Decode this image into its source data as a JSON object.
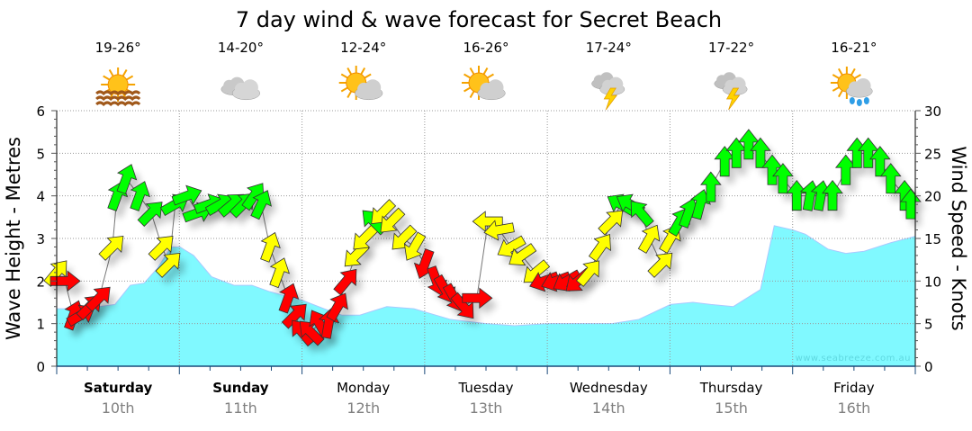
{
  "chart_data": {
    "type": "area",
    "title": "7 day wind & wave forecast for Secret Beach",
    "ylabel_left": "Wave Height - Metres",
    "ylabel_right": "Wind Speed - Knots",
    "ylim_left": [
      0,
      6
    ],
    "ylim_right": [
      0,
      30
    ],
    "xlim_hours": [
      0,
      168
    ],
    "grid": true,
    "left_ticks": [
      "0",
      "1",
      "2",
      "3",
      "4",
      "5",
      "6"
    ],
    "right_ticks": [
      "0",
      "5",
      "10",
      "15",
      "20",
      "25",
      "30"
    ],
    "watermark": "www.seabreeze.com.au",
    "days": [
      {
        "name": "Saturday",
        "date": "10th",
        "bold": true,
        "temp": "19-26°",
        "icon": "sun-haze"
      },
      {
        "name": "Sunday",
        "date": "11th",
        "bold": true,
        "temp": "14-20°",
        "icon": "cloudy"
      },
      {
        "name": "Monday",
        "date": "12th",
        "bold": false,
        "temp": "12-24°",
        "icon": "partly-cloudy"
      },
      {
        "name": "Tuesday",
        "date": "13th",
        "bold": false,
        "temp": "16-26°",
        "icon": "partly-cloudy"
      },
      {
        "name": "Wednesday",
        "date": "14th",
        "bold": false,
        "temp": "17-24°",
        "icon": "thunderstorm"
      },
      {
        "name": "Thursday",
        "date": "15th",
        "bold": false,
        "temp": "17-22°",
        "icon": "thunderstorm"
      },
      {
        "name": "Friday",
        "date": "16th",
        "bold": false,
        "temp": "16-21°",
        "icon": "sun-showers"
      }
    ],
    "colors": {
      "wave_fill": "#80f9ff",
      "wave_edge": "#a9c9ff",
      "red": "#ff0000",
      "yellow": "#ffff00",
      "green": "#00ff00",
      "day_date": "#808080"
    },
    "wave_series": {
      "name": "Wave Height (m)",
      "hours": [
        0,
        4.8,
        8.3,
        11.4,
        14.4,
        17.1,
        19.7,
        22.4,
        24.1,
        26.8,
        30.3,
        34.7,
        38.2,
        41.7,
        48,
        52.3,
        55.8,
        59.3,
        64.6,
        69.9,
        77,
        84,
        89.6,
        96.2,
        108.7,
        113.9,
        120.1,
        124.5,
        128,
        132.4,
        137.7,
        140.4,
        144,
        146.5,
        150.9,
        154.4,
        158,
        163.2,
        168
      ],
      "values": [
        1.35,
        1.35,
        1.4,
        1.45,
        1.9,
        1.95,
        2.3,
        2.8,
        2.8,
        2.6,
        2.1,
        1.9,
        1.9,
        1.75,
        1.55,
        1.35,
        1.2,
        1.2,
        1.4,
        1.35,
        1.1,
        1.0,
        0.95,
        1.0,
        1.0,
        1.1,
        1.45,
        1.5,
        1.45,
        1.4,
        1.8,
        3.3,
        3.2,
        3.1,
        2.75,
        2.65,
        2.7,
        2.9,
        3.05
      ]
    },
    "wind_series": {
      "name": "Wind Speed (knots), arrow direction in degrees (0=up), level colour",
      "points": [
        [
          0,
          11,
          40,
          "yellow"
        ],
        [
          1.6,
          10,
          90,
          "red"
        ],
        [
          3.3,
          6,
          20,
          "red"
        ],
        [
          4.8,
          6,
          60,
          "red"
        ],
        [
          6.5,
          7,
          45,
          "red"
        ],
        [
          8.3,
          8,
          45,
          "red"
        ],
        [
          10.9,
          14,
          45,
          "yellow"
        ],
        [
          11.8,
          20,
          20,
          "green"
        ],
        [
          13.6,
          22,
          20,
          "green"
        ],
        [
          16.2,
          20,
          20,
          "green"
        ],
        [
          18.5,
          18,
          45,
          "green"
        ],
        [
          20.6,
          14,
          45,
          "yellow"
        ],
        [
          22,
          12,
          45,
          "yellow"
        ],
        [
          23.2,
          19,
          60,
          "green"
        ],
        [
          25.5,
          20,
          70,
          "green"
        ],
        [
          27.6,
          18,
          70,
          "green"
        ],
        [
          29.8,
          19,
          70,
          "green"
        ],
        [
          32,
          19,
          60,
          "green"
        ],
        [
          34.3,
          19,
          50,
          "green"
        ],
        [
          36.5,
          19,
          45,
          "green"
        ],
        [
          38.6,
          20,
          35,
          "green"
        ],
        [
          40,
          19,
          25,
          "green"
        ],
        [
          41.7,
          14,
          20,
          "yellow"
        ],
        [
          43.5,
          11,
          20,
          "yellow"
        ],
        [
          45.3,
          8,
          20,
          "red"
        ],
        [
          46.7,
          6,
          45,
          "red"
        ],
        [
          48,
          4,
          320,
          "red"
        ],
        [
          49.7,
          4,
          315,
          "red"
        ],
        [
          51.4,
          5,
          330,
          "red"
        ],
        [
          53.2,
          5,
          10,
          "red"
        ],
        [
          55,
          7,
          30,
          "red"
        ],
        [
          56.7,
          10,
          40,
          "red"
        ],
        [
          58.5,
          13,
          225,
          "yellow"
        ],
        [
          60.2,
          15,
          225,
          "yellow"
        ],
        [
          62,
          17,
          315,
          "green"
        ],
        [
          63.7,
          18,
          225,
          "yellow"
        ],
        [
          65.5,
          17,
          225,
          "yellow"
        ],
        [
          67.8,
          15,
          225,
          "yellow"
        ],
        [
          70,
          14,
          210,
          "yellow"
        ],
        [
          72,
          12,
          200,
          "red"
        ],
        [
          74.3,
          10,
          160,
          "red"
        ],
        [
          76,
          9,
          150,
          "red"
        ],
        [
          77.8,
          8,
          150,
          "red"
        ],
        [
          79.6,
          7,
          140,
          "red"
        ],
        [
          82.2,
          8,
          90,
          "red"
        ],
        [
          84.4,
          17,
          270,
          "yellow"
        ],
        [
          86.6,
          16,
          260,
          "yellow"
        ],
        [
          88.9,
          14,
          240,
          "yellow"
        ],
        [
          91,
          13,
          235,
          "yellow"
        ],
        [
          93.7,
          11,
          230,
          "yellow"
        ],
        [
          95.4,
          10,
          250,
          "red"
        ],
        [
          97.7,
          10,
          250,
          "red"
        ],
        [
          99.8,
          10,
          240,
          "red"
        ],
        [
          102,
          10,
          230,
          "red"
        ],
        [
          104.2,
          11,
          40,
          "yellow"
        ],
        [
          106.5,
          14,
          35,
          "yellow"
        ],
        [
          108.6,
          17,
          45,
          "yellow"
        ],
        [
          110.4,
          19,
          300,
          "green"
        ],
        [
          112.2,
          19,
          300,
          "green"
        ],
        [
          114.3,
          18,
          320,
          "green"
        ],
        [
          116,
          15,
          30,
          "yellow"
        ],
        [
          118.3,
          12,
          45,
          "yellow"
        ],
        [
          120.1,
          15,
          30,
          "yellow"
        ],
        [
          121.9,
          17,
          30,
          "green"
        ],
        [
          123.6,
          18,
          20,
          "green"
        ],
        [
          125.9,
          19,
          15,
          "green"
        ],
        [
          128,
          21,
          0,
          "green"
        ],
        [
          130.7,
          24,
          0,
          "green"
        ],
        [
          133,
          25,
          0,
          "green"
        ],
        [
          135.4,
          26,
          0,
          "green"
        ],
        [
          137.7,
          25,
          0,
          "green"
        ],
        [
          140,
          23,
          0,
          "green"
        ],
        [
          142.1,
          22,
          0,
          "green"
        ],
        [
          144.8,
          20,
          0,
          "green"
        ],
        [
          147.4,
          20,
          10,
          "green"
        ],
        [
          149.5,
          20,
          10,
          "green"
        ],
        [
          151.8,
          20,
          0,
          "green"
        ],
        [
          154.4,
          23,
          0,
          "green"
        ],
        [
          156.6,
          25,
          0,
          "green"
        ],
        [
          158.8,
          25,
          0,
          "green"
        ],
        [
          161.1,
          24,
          0,
          "green"
        ],
        [
          163.2,
          22,
          0,
          "green"
        ],
        [
          165.9,
          20,
          0,
          "green"
        ],
        [
          167.1,
          19,
          0,
          "green"
        ]
      ]
    }
  }
}
